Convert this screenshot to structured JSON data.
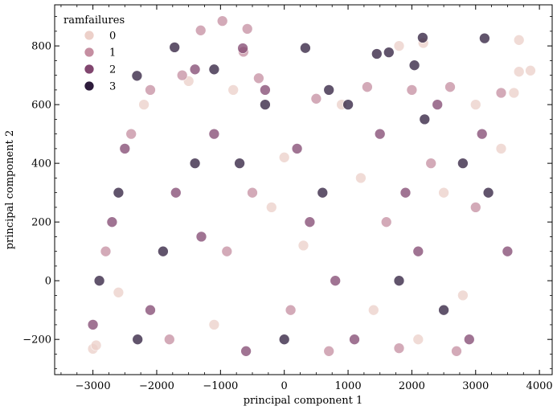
{
  "chart_data": {
    "type": "scatter",
    "title": "",
    "xlabel": "principal component 1",
    "ylabel": "principal component 2",
    "xlim": [
      -3600,
      4200
    ],
    "ylim": [
      -320,
      940
    ],
    "xticks": [
      -3000,
      -2000,
      -1000,
      0,
      1000,
      2000,
      3000,
      4000
    ],
    "yticks": [
      -200,
      0,
      200,
      400,
      600,
      800
    ],
    "xtick_labels": [
      "−3000",
      "−2000",
      "−1000",
      "0",
      "1000",
      "2000",
      "3000",
      "4000"
    ],
    "ytick_labels": [
      "−200",
      "0",
      "200",
      "400",
      "600",
      "800"
    ],
    "grid": false,
    "legend": {
      "title": "ramfailures",
      "placement": "top-left",
      "entries": [
        {
          "label": "0",
          "color": "#ecd0c9"
        },
        {
          "label": "1",
          "color": "#c58ea1"
        },
        {
          "label": "2",
          "color": "#81466f"
        },
        {
          "label": "3",
          "color": "#2d1b3b"
        }
      ]
    },
    "series": [
      {
        "label": "0",
        "color": "#ecd0c9",
        "points": [
          [
            3680,
            820
          ],
          [
            2180,
            810
          ],
          [
            1800,
            800
          ],
          [
            3680,
            712
          ],
          [
            3860,
            716
          ],
          [
            -3000,
            -232
          ],
          [
            -2950,
            -220
          ],
          [
            -2600,
            -40
          ],
          [
            -2200,
            600
          ],
          [
            -1500,
            680
          ],
          [
            -800,
            650
          ],
          [
            0,
            420
          ],
          [
            300,
            120
          ],
          [
            900,
            600
          ],
          [
            1400,
            -100
          ],
          [
            2500,
            300
          ],
          [
            3000,
            600
          ],
          [
            3400,
            450
          ],
          [
            3600,
            640
          ],
          [
            -200,
            250
          ],
          [
            1200,
            350
          ],
          [
            2100,
            -200
          ],
          [
            -1100,
            -150
          ],
          [
            2800,
            -50
          ]
        ]
      },
      {
        "label": "1",
        "color": "#c58ea1",
        "points": [
          [
            -970,
            885
          ],
          [
            -1310,
            853
          ],
          [
            -580,
            858
          ],
          [
            -640,
            780
          ],
          [
            -2100,
            650
          ],
          [
            -1600,
            700
          ],
          [
            -400,
            690
          ],
          [
            500,
            620
          ],
          [
            1300,
            660
          ],
          [
            2000,
            650
          ],
          [
            2600,
            660
          ],
          [
            3400,
            640
          ],
          [
            -2800,
            100
          ],
          [
            -1800,
            -200
          ],
          [
            -500,
            300
          ],
          [
            700,
            -240
          ],
          [
            1600,
            200
          ],
          [
            2300,
            400
          ],
          [
            3000,
            250
          ],
          [
            -2400,
            500
          ],
          [
            -900,
            100
          ],
          [
            100,
            -100
          ],
          [
            1800,
            -230
          ],
          [
            2700,
            -240
          ]
        ]
      },
      {
        "label": "2",
        "color": "#81466f",
        "points": [
          [
            -650,
            792
          ],
          [
            -1400,
            720
          ],
          [
            -2500,
            450
          ],
          [
            -2700,
            200
          ],
          [
            -2100,
            -100
          ],
          [
            -1700,
            300
          ],
          [
            -1100,
            500
          ],
          [
            -300,
            650
          ],
          [
            200,
            450
          ],
          [
            800,
            0
          ],
          [
            1500,
            500
          ],
          [
            2100,
            100
          ],
          [
            2400,
            600
          ],
          [
            3100,
            500
          ],
          [
            3500,
            100
          ],
          [
            -3000,
            -150
          ],
          [
            -600,
            -240
          ],
          [
            400,
            200
          ],
          [
            1100,
            -200
          ],
          [
            1900,
            300
          ],
          [
            2900,
            -200
          ],
          [
            -1300,
            150
          ]
        ]
      },
      {
        "label": "3",
        "color": "#2d1b3b",
        "points": [
          [
            -1720,
            795
          ],
          [
            330,
            793
          ],
          [
            1450,
            773
          ],
          [
            3140,
            826
          ],
          [
            2170,
            828
          ],
          [
            1640,
            778
          ],
          [
            2040,
            734
          ],
          [
            -2310,
            698
          ],
          [
            -1100,
            720
          ],
          [
            -300,
            600
          ],
          [
            -2900,
            0
          ],
          [
            -2600,
            300
          ],
          [
            -1900,
            100
          ],
          [
            -700,
            400
          ],
          [
            0,
            -200
          ],
          [
            600,
            300
          ],
          [
            1000,
            600
          ],
          [
            1800,
            0
          ],
          [
            2500,
            -100
          ],
          [
            3200,
            300
          ],
          [
            -2300,
            -200
          ],
          [
            -1400,
            400
          ],
          [
            700,
            650
          ],
          [
            2200,
            550
          ],
          [
            2800,
            400
          ]
        ]
      }
    ]
  }
}
